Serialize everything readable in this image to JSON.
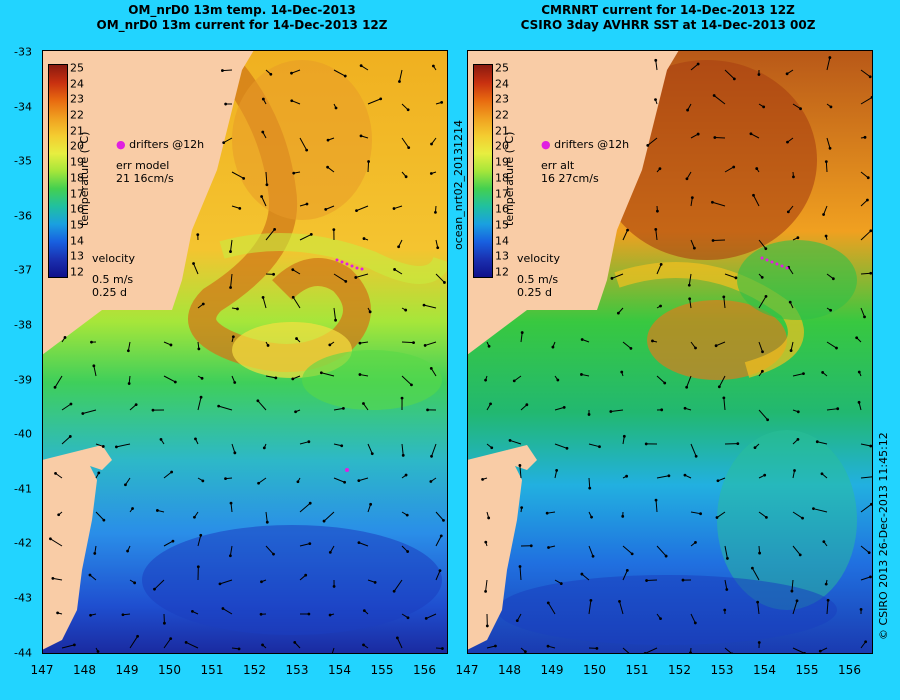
{
  "left": {
    "title_line1": "OM_nrD0 13m temp. 14-Dec-2013",
    "title_line2": "OM_nrD0 13m current for 14-Dec-2013 12Z",
    "drifters": "drifters @12h",
    "err_label": "err model",
    "err_value": "21 16cm/s",
    "velocity_label": "velocity",
    "velocity_scale": "0.5 m/s",
    "velocity_time": "0.25 d"
  },
  "right": {
    "title_line1": "CMRNRT current for 14-Dec-2013 12Z",
    "title_line2": "CSIRO 3day AVHRR SST at 14-Dec-2013 00Z",
    "drifters": "drifters @12h",
    "err_label": "err alt",
    "err_value": "16 27cm/s",
    "velocity_label": "velocity",
    "velocity_scale": "0.5 m/s",
    "velocity_time": "0.25 d"
  },
  "colorbar": {
    "title": "temperature (°C)",
    "ticks": [
      "25",
      "24",
      "23",
      "22",
      "21",
      "20",
      "19",
      "18",
      "17",
      "16",
      "15",
      "14",
      "13",
      "12"
    ]
  },
  "y_ticks": [
    "-33",
    "-34",
    "-35",
    "-36",
    "-37",
    "-38",
    "-39",
    "-40",
    "-41",
    "-42",
    "-43",
    "-44"
  ],
  "x_ticks": [
    "147",
    "148",
    "149",
    "150",
    "151",
    "152",
    "153",
    "154",
    "155",
    "156"
  ],
  "side_label": "ocean_nrt02_20131214",
  "footer": "© CSIRO 2013   26-Dec-2013 11:45:12",
  "colors": {
    "background": "#22d4ff",
    "land": "#f9cca6"
  }
}
